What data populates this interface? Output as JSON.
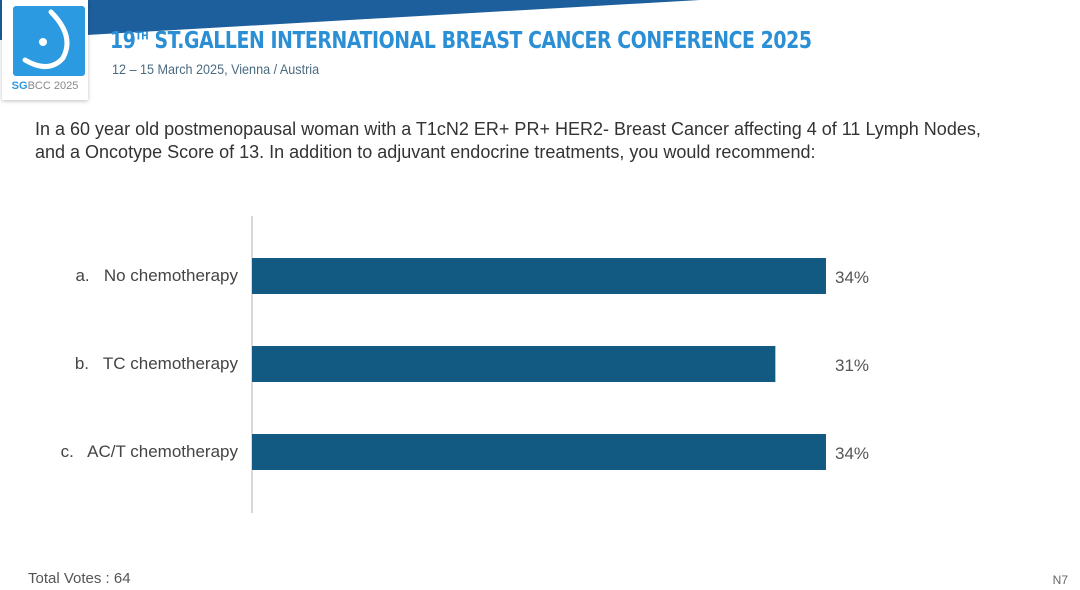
{
  "header": {
    "logo_text": "SGBCC 2025",
    "title_number": "19",
    "title_suffix": "TH",
    "title_rest": " ST.GALLEN INTERNATIONAL BREAST CANCER CONFERENCE 2025",
    "subtitle": "12 – 15 March 2025, Vienna / Austria"
  },
  "question": "In a 60 year old postmenopausal woman with a T1cN2 ER+ PR+ HER2- Breast Cancer affecting 4 of 11 Lymph Nodes, and a Oncotype Score of 13. In addition to adjuvant endocrine treatments, you would recommend:",
  "chart_data": {
    "type": "bar",
    "orientation": "horizontal",
    "categories": [
      "a.   No chemotherapy",
      "b.   TC chemotherapy",
      "c.   AC/T chemotherapy"
    ],
    "values": [
      34,
      31,
      34
    ],
    "labels": [
      "34%",
      "31%",
      "34%"
    ],
    "unit": "%",
    "xlim": [
      0,
      34
    ],
    "grid": false,
    "bar_color": "#135a82"
  },
  "footer": {
    "total_votes": "Total Votes : 64",
    "slide_id": "N7"
  }
}
